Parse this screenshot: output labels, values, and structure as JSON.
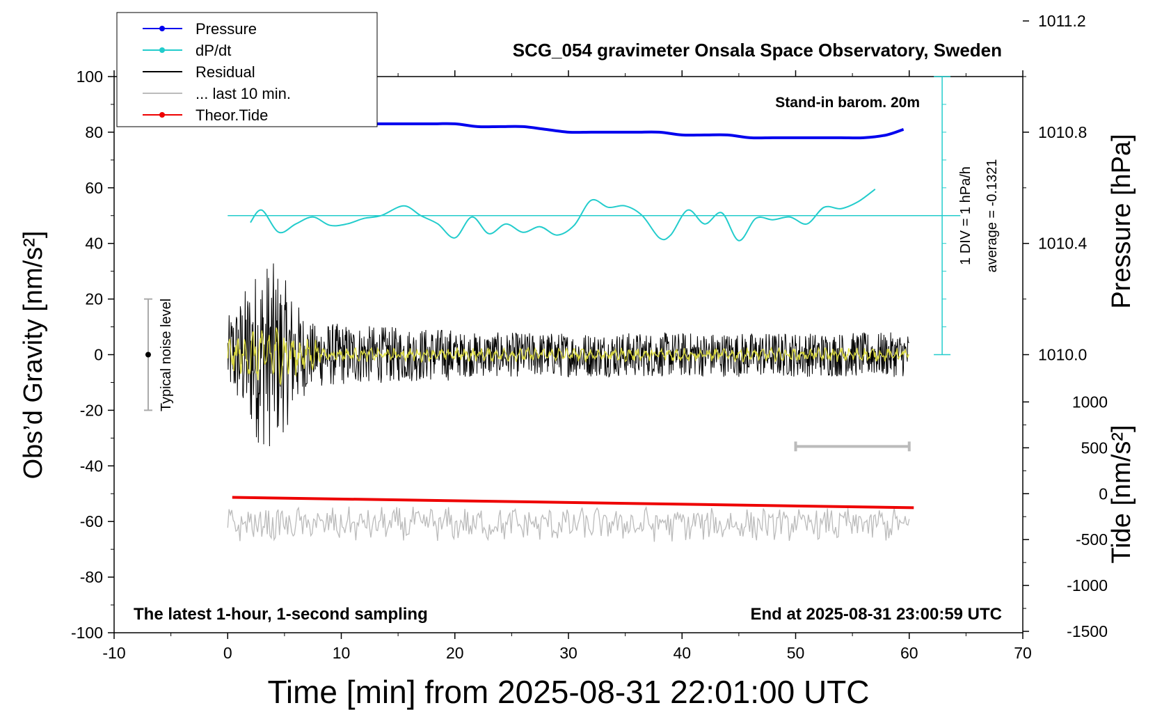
{
  "chart_data": {
    "type": "line",
    "title": "SCG_054 gravimeter Onsala Space Observatory, Sweden",
    "xlabel": "Time [min] from 2025-08-31 22:01:00 UTC",
    "ylabel_left": "Obs’d Gravity [nm/s²]",
    "ylabel_right_pressure": "Pressure [hPa]",
    "ylabel_right_tide": "Tide [nm/s²]",
    "xlim": [
      -10,
      70
    ],
    "ylim_left": [
      -100,
      100
    ],
    "pressure_range": [
      1009.8,
      1011.4
    ],
    "tide_range": [
      -1500,
      1000
    ],
    "x_ticks": [
      "-10",
      "0",
      "10",
      "20",
      "30",
      "40",
      "50",
      "60",
      "70"
    ],
    "y_ticks_left": [
      "100",
      "80",
      "60",
      "40",
      "20",
      "0",
      "-20",
      "-40",
      "-60",
      "-80",
      "-100"
    ],
    "pressure_ticks": [
      "1011.2",
      "1010.8",
      "1010.4",
      "1010.0"
    ],
    "tide_ticks": [
      "1000",
      "500",
      "0",
      "-500",
      "-1000",
      "-1500"
    ],
    "legend_position": "top-left",
    "legend": [
      {
        "label": "Pressure",
        "color": "#0000ee",
        "marker": "dot"
      },
      {
        "label": "dP/dt",
        "color": "#22cccc",
        "marker": "dot"
      },
      {
        "label": "Residual",
        "color": "#000000",
        "marker": "none"
      },
      {
        "label": "... last 10 min.",
        "color": "#bbbbbb",
        "marker": "none"
      },
      {
        "label": "Theor.Tide",
        "color": "#ee0000",
        "marker": "dot"
      }
    ],
    "annotations": {
      "barometer": "Stand-in barom. 20m",
      "div_scale": "1 DIV = 1 hPa/h",
      "average": "average = -0.1321",
      "noise_label": "Typical noise level",
      "bottom_left": "The latest 1-hour, 1-second sampling",
      "bottom_right": "End at 2025-08-31 23:00:59 UTC"
    },
    "noise_bar": {
      "x": -7,
      "y_range": [
        -20,
        20
      ],
      "center": 0
    },
    "last10_bar": {
      "x_range": [
        50,
        60
      ],
      "y": -33
    },
    "dpdt_zero_line": 50,
    "series": [
      {
        "name": "Pressure",
        "color": "#0000ee",
        "x": [
          0,
          2,
          4,
          6,
          8,
          10,
          12,
          14,
          16,
          18,
          20,
          22,
          24,
          26,
          28,
          30,
          32,
          34,
          36,
          38,
          40,
          42,
          44,
          46,
          48,
          50,
          52,
          54,
          56,
          58,
          59.5
        ],
        "y": [
          1010.86,
          1010.85,
          1010.85,
          1010.84,
          1010.84,
          1010.83,
          1010.83,
          1010.83,
          1010.83,
          1010.83,
          1010.83,
          1010.82,
          1010.82,
          1010.82,
          1010.81,
          1010.8,
          1010.8,
          1010.8,
          1010.8,
          1010.8,
          1010.79,
          1010.79,
          1010.79,
          1010.78,
          1010.78,
          1010.78,
          1010.78,
          1010.78,
          1010.78,
          1010.79,
          1010.81
        ]
      },
      {
        "name": "dP/dt",
        "color": "#22cccc",
        "x": [
          2,
          3,
          4.5,
          6,
          7.5,
          9,
          10.5,
          12,
          13.5,
          15.5,
          17,
          18.5,
          20,
          21.5,
          23,
          24.5,
          26,
          27.5,
          29,
          30.5,
          32,
          33.5,
          35,
          36.5,
          38,
          39,
          40.5,
          42,
          43.5,
          45,
          46.5,
          48,
          49.5,
          51,
          52.5,
          54,
          55.5,
          57
        ],
        "y": [
          47.5,
          52,
          44,
          47,
          49.5,
          46.5,
          47,
          49,
          50,
          53.5,
          50,
          47,
          42,
          49.5,
          43.5,
          47,
          44,
          46,
          43,
          46.5,
          55.5,
          53,
          53.5,
          50,
          42,
          43,
          52,
          47,
          51,
          41,
          49,
          48.5,
          49.5,
          47,
          53,
          52.5,
          55,
          59.5
        ]
      },
      {
        "name": "Residual",
        "color": "#000000",
        "x_range": [
          0,
          60
        ],
        "note": "1-second sampled noise, amplitude ~±35 early decaying to ~±8"
      },
      {
        "name": "... last 10 min.",
        "color": "#bbbbbb",
        "x_range": [
          0,
          60
        ],
        "y_center": -61
      },
      {
        "name": "Theor.Tide",
        "color": "#ee0000",
        "x": [
          0.4,
          60.4
        ],
        "y": [
          -40,
          -153
        ]
      }
    ]
  }
}
